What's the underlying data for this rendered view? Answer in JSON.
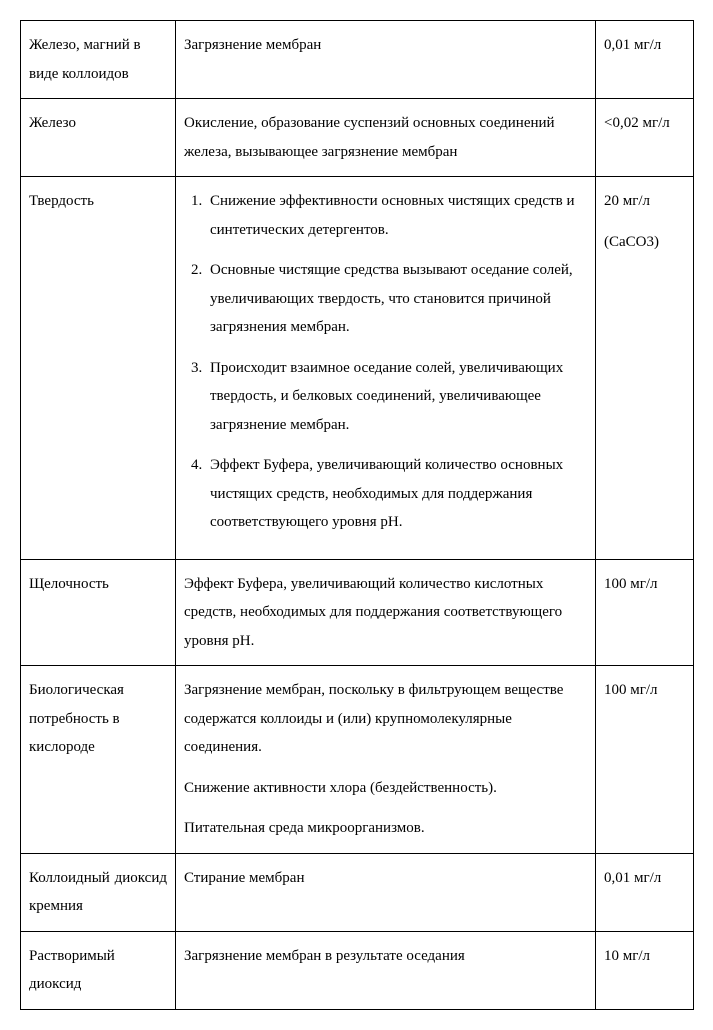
{
  "table": {
    "rows": [
      {
        "col1": "Железо, магний в виде коллоидов",
        "col2_plain": "Загрязнение мембран",
        "col3": "0,01 мг/л"
      },
      {
        "col1": "Железо",
        "col2_plain": "Окисление, образование суспензий основных соединений железа, вызывающее загрязнение мембран",
        "col3": "<0,02 мг/л"
      },
      {
        "col1": "Твердость",
        "col2_list": [
          "Снижение эффективности основных чистящих средств и синтетических детергентов.",
          "Основные чистящие средства вызывают оседание солей, увеличивающих твердость, что становится причиной загрязнения мембран.",
          "Происходит взаимное оседание солей, увеличивающих твердость, и белковых соединений, увеличивающее загрязнение мембран.",
          "Эффект Буфера, увеличивающий количество основных чистящих средств, необходимых для поддержания соответствующего уровня pH."
        ],
        "col3_multi": [
          "20 мг/л",
          "(CaCO3)"
        ]
      },
      {
        "col1": "Щелочность",
        "col2_plain": "Эффект Буфера, увеличивающий количество кислотных средств, необходимых для поддержания соответствующего уровня pH.",
        "col3": "100 мг/л"
      },
      {
        "col1": "Биологическая потребность в кислороде",
        "col2_paras": [
          "Загрязнение мембран, поскольку в фильтрующем веществе содержатся коллоиды и (или) крупномолекулярные соединения.",
          "Снижение активности хлора (бездейственность).",
          "Питательная среда микроорганизмов."
        ],
        "col3": "100 мг/л"
      },
      {
        "col1_spread": [
          "Коллоидный",
          "диоксид"
        ],
        "col1_tail": "кремния",
        "col2_plain": "Стирание мембран",
        "col3": "0,01 мг/л"
      },
      {
        "col1_spread": [
          "Растворимый",
          "диоксид"
        ],
        "col2_plain": "Загрязнение мембран в результате оседания",
        "col3": "10 мг/л"
      }
    ]
  }
}
